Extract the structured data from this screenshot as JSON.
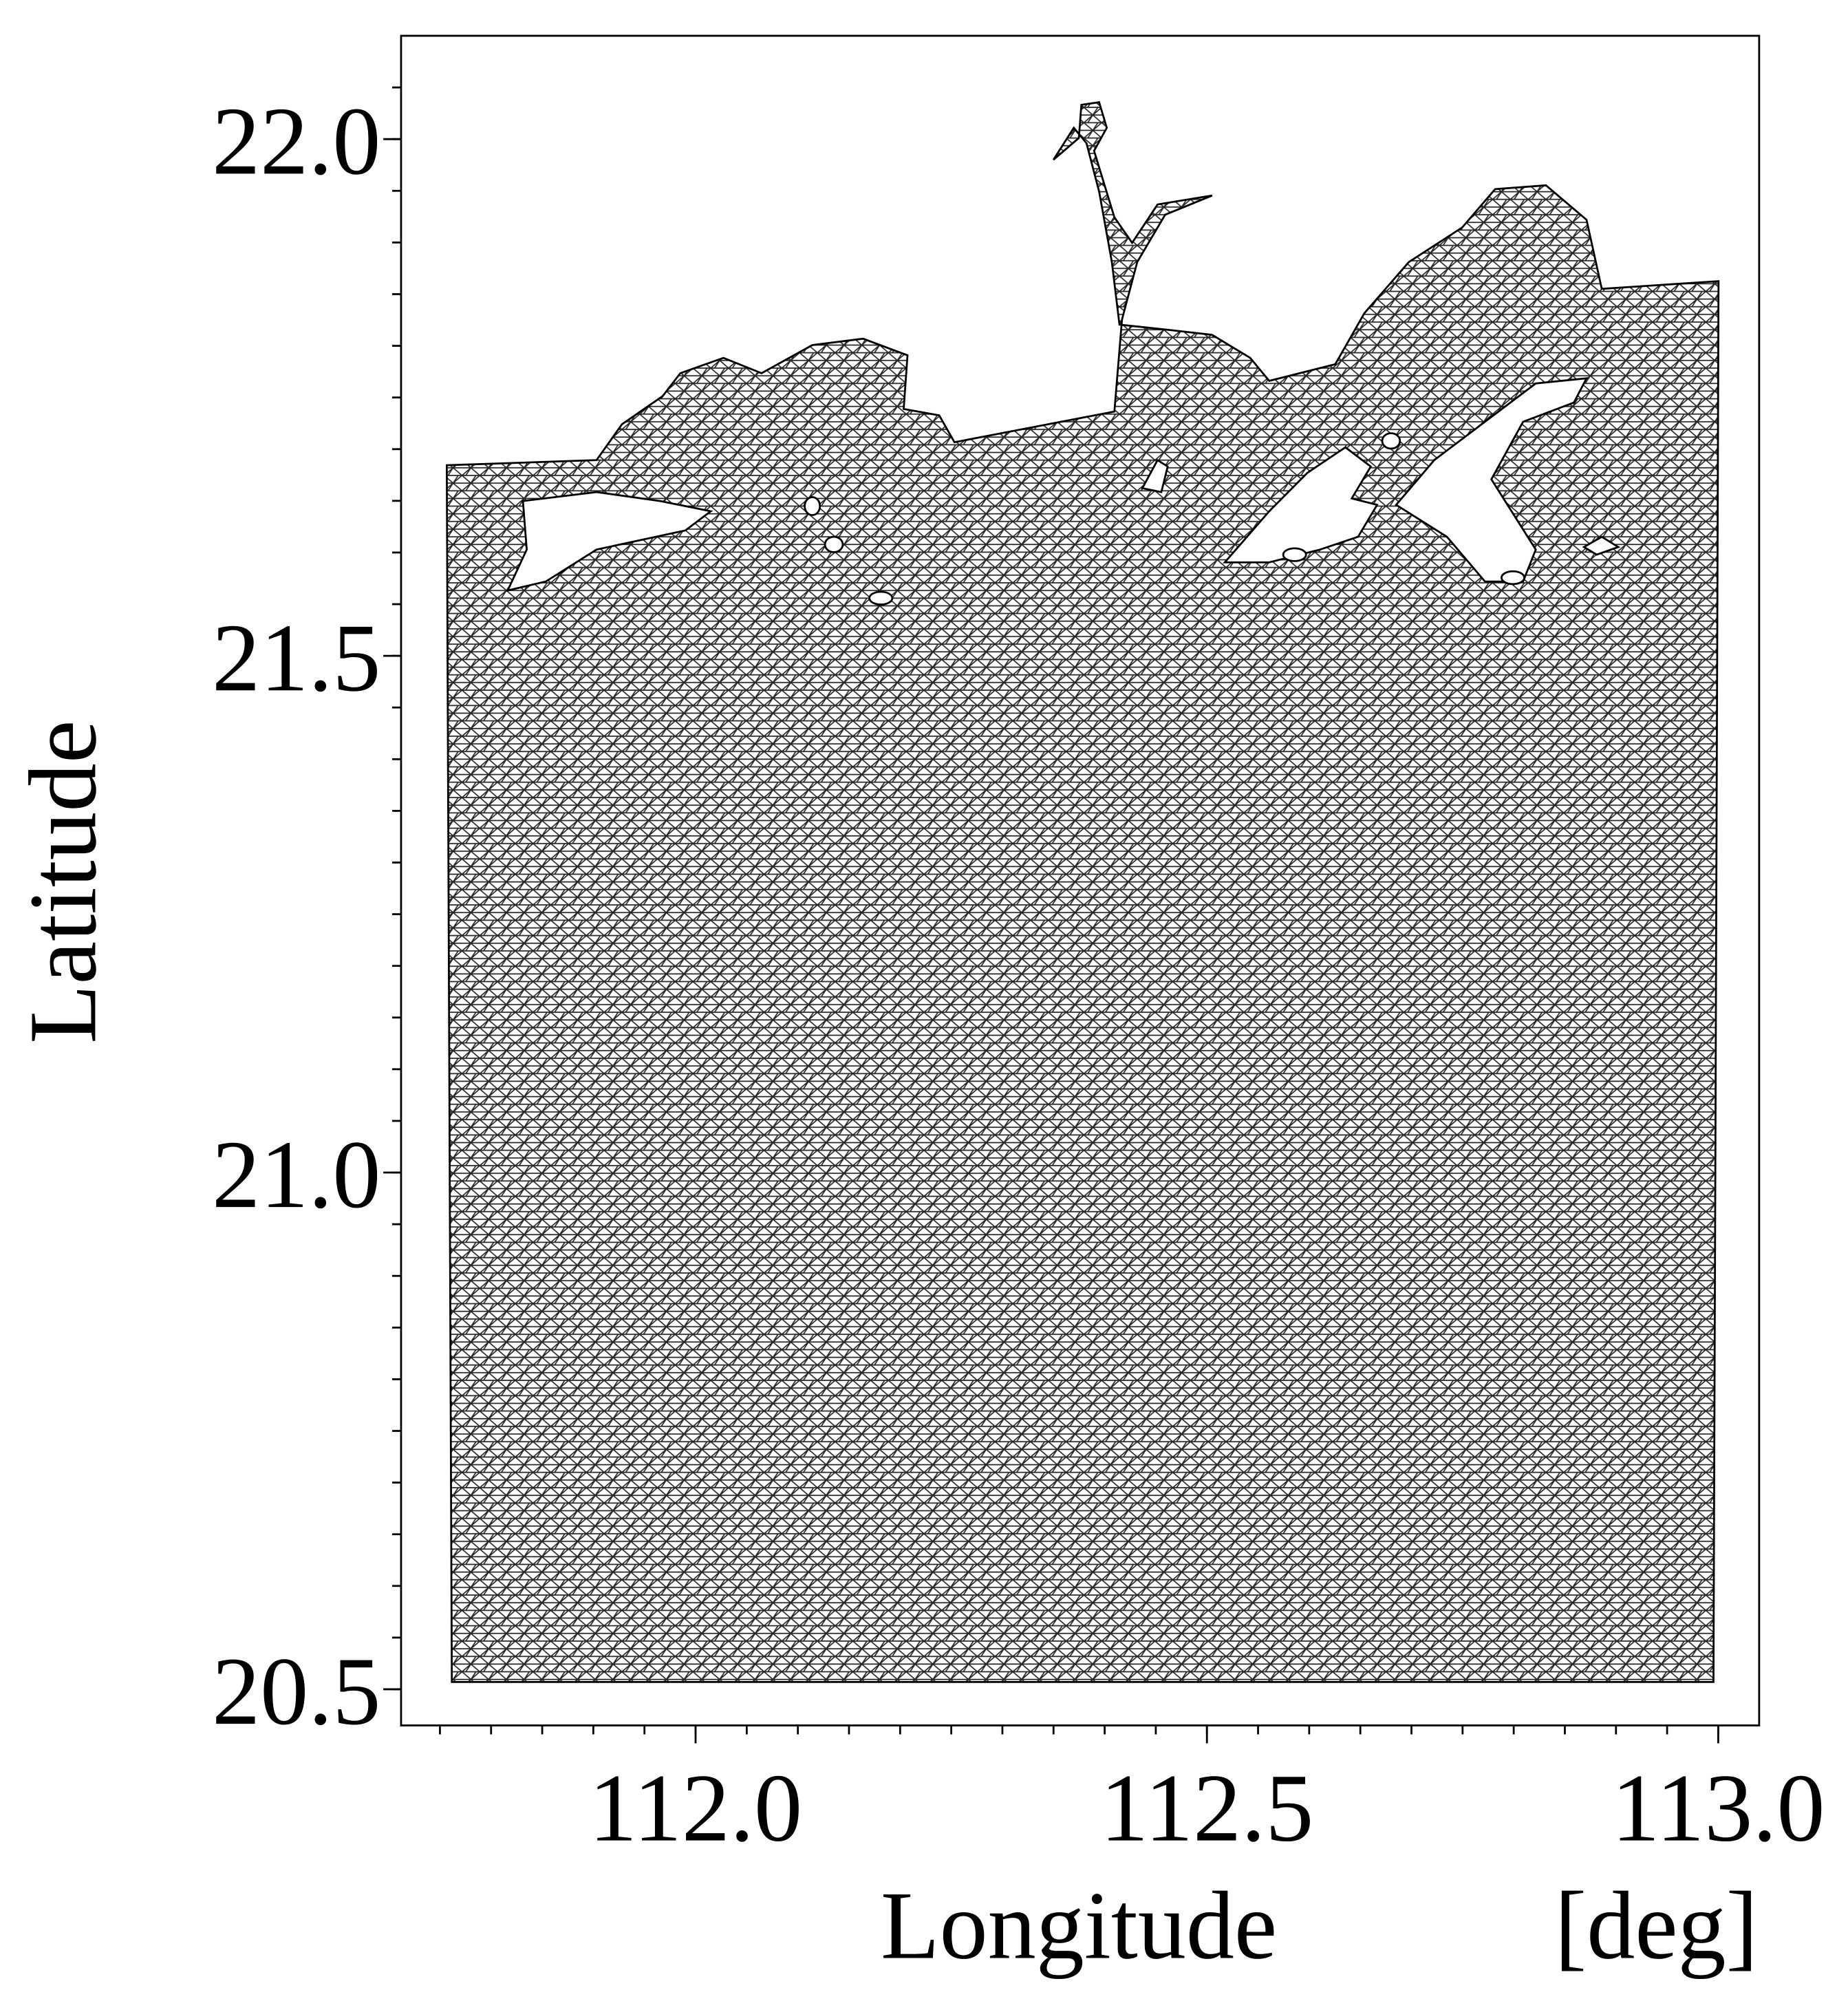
{
  "chart_data": {
    "type": "map",
    "xlabel": "Longitude",
    "xunit": "[deg]",
    "ylabel": "Latitude",
    "xlim": [
      111.712,
      113.04
    ],
    "ylim": [
      20.465,
      22.1
    ],
    "xticks": [
      {
        "value": 112,
        "label": "112.0"
      },
      112.5,
      {
        "value": 113,
        "label": "113.0"
      }
    ],
    "yticks": [
      20.5,
      {
        "value": 21,
        "label": "21.0"
      },
      21.5,
      {
        "value": 22,
        "label": "22.0"
      }
    ],
    "xminorticks": [
      111.75,
      111.8,
      111.85,
      111.9,
      111.95,
      112.0,
      112.05,
      112.1,
      112.15,
      112.2,
      112.25,
      112.3,
      112.35,
      112.4,
      112.45,
      112.5,
      112.55,
      112.6,
      112.65,
      112.7,
      112.75,
      112.8,
      112.85,
      112.9,
      112.95,
      113.0
    ],
    "yminorticks": [
      20.5,
      20.55,
      20.6,
      20.65,
      20.7,
      20.75,
      20.8,
      20.85,
      20.9,
      20.95,
      21.0,
      21.05,
      21.1,
      21.15,
      21.2,
      21.25,
      21.3,
      21.35,
      21.4,
      21.45,
      21.5,
      21.55,
      21.6,
      21.65,
      21.7,
      21.75,
      21.8,
      21.85,
      21.9,
      21.95,
      22.0,
      22.05
    ]
  }
}
